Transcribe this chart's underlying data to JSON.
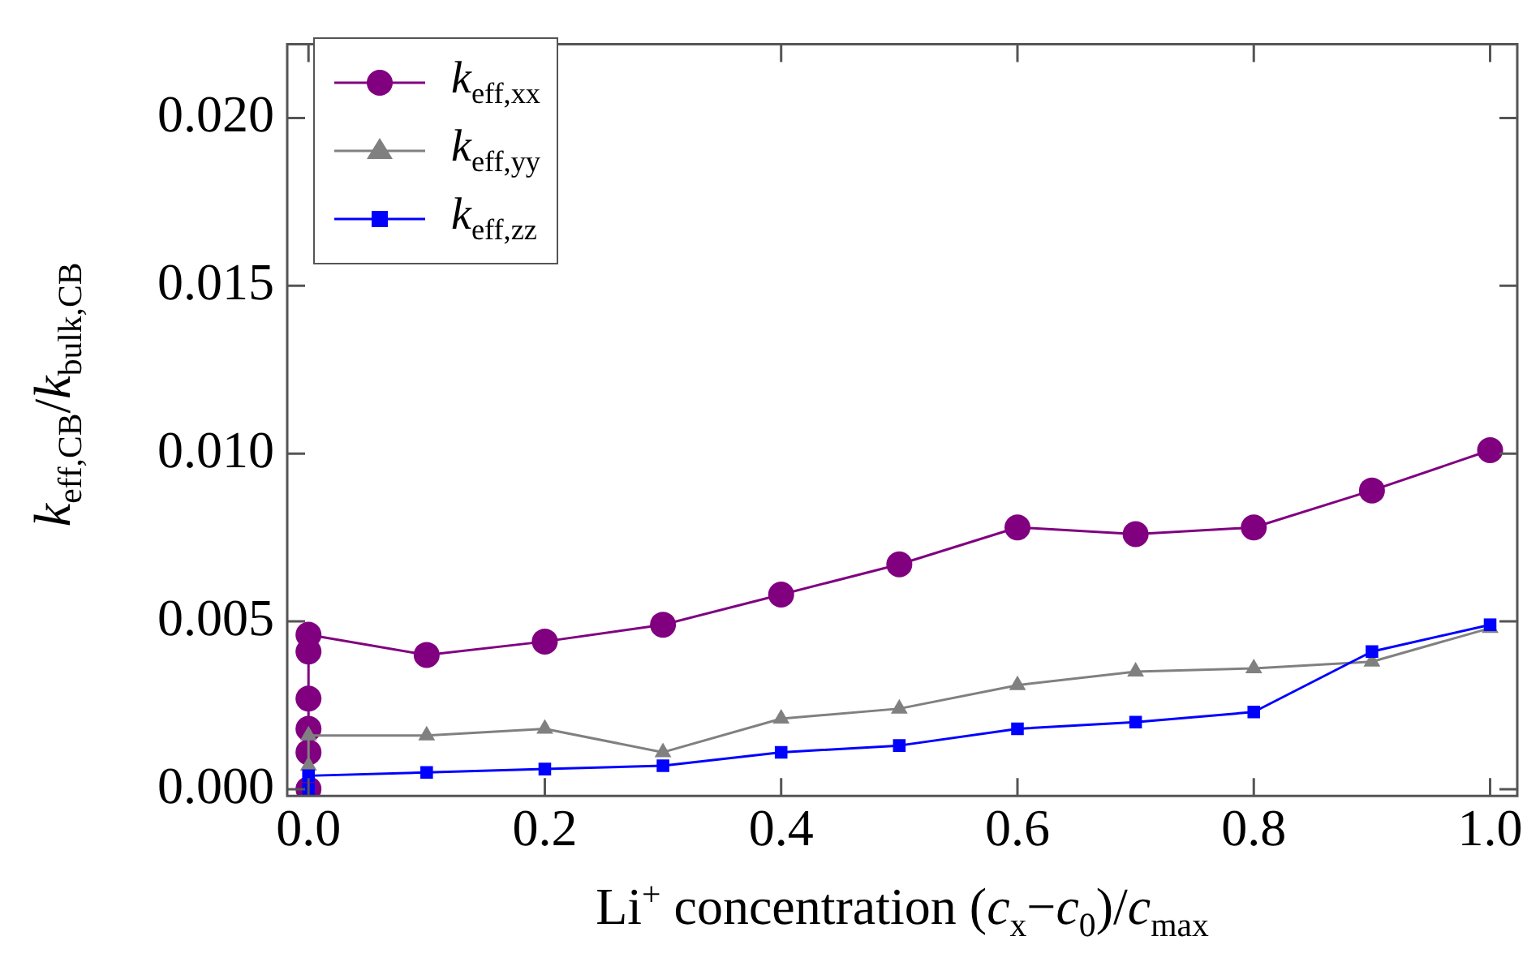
{
  "chart_data": {
    "type": "line",
    "xlabel": "Li$^{+}$ concentration (c$_{x}$−c$_{0}$)/c$_{max}$",
    "ylabel": "k$_{eff,CB}$/k$_{bulk,CB}$",
    "xlim": [
      -0.018,
      1.023
    ],
    "ylim": [
      -0.0002,
      0.0222
    ],
    "xticks": [
      {
        "value": 0,
        "label": "0.0"
      },
      {
        "value": 0.2,
        "label": "0.2"
      },
      {
        "value": 0.4,
        "label": "0.4"
      },
      {
        "value": 0.6,
        "label": "0.6"
      },
      {
        "value": 0.8,
        "label": "0.8"
      },
      {
        "value": 1,
        "label": "1.0"
      }
    ],
    "yticks": [
      {
        "value": 0,
        "label": "0.000"
      },
      {
        "value": 0.005,
        "label": "0.005"
      },
      {
        "value": 0.01,
        "label": "0.010"
      },
      {
        "value": 0.015,
        "label": "0.015"
      },
      {
        "value": 0.02,
        "label": "0.020"
      }
    ],
    "grid": false,
    "legend": "top left",
    "series": [
      {
        "name": "k$_{eff,xx}$",
        "color": "#800080",
        "marker": "circle",
        "x": [
          0,
          0,
          0,
          0,
          0,
          0,
          0.1,
          0.2,
          0.3,
          0.4,
          0.5,
          0.6,
          0.7,
          0.8,
          0.9,
          1.0
        ],
        "values": [
          0,
          0.0011,
          0.0018,
          0.0027,
          0.0041,
          0.0046,
          0.004,
          0.0044,
          0.0049,
          0.0058,
          0.0067,
          0.0078,
          0.0076,
          0.0078,
          0.0089,
          0.0101
        ]
      },
      {
        "name": "k$_{eff,yy}$",
        "color": "#808080",
        "marker": "triangle",
        "x": [
          0,
          0,
          0.1,
          0.2,
          0.3,
          0.4,
          0.5,
          0.6,
          0.7,
          0.8,
          0.9,
          1.0
        ],
        "values": [
          0.0007,
          0.0016,
          0.0016,
          0.0018,
          0.0011,
          0.0021,
          0.0024,
          0.0031,
          0.0035,
          0.0036,
          0.0038,
          0.0048
        ]
      },
      {
        "name": "k$_{eff,zz}$",
        "color": "#0000ff",
        "marker": "square",
        "x": [
          0,
          0,
          0.1,
          0.2,
          0.3,
          0.4,
          0.5,
          0.6,
          0.7,
          0.8,
          0.9,
          1.0
        ],
        "values": [
          0,
          0.0004,
          0.0005,
          0.0006,
          0.0007,
          0.0011,
          0.0013,
          0.0018,
          0.002,
          0.0023,
          0.0041,
          0.0049
        ]
      }
    ]
  }
}
